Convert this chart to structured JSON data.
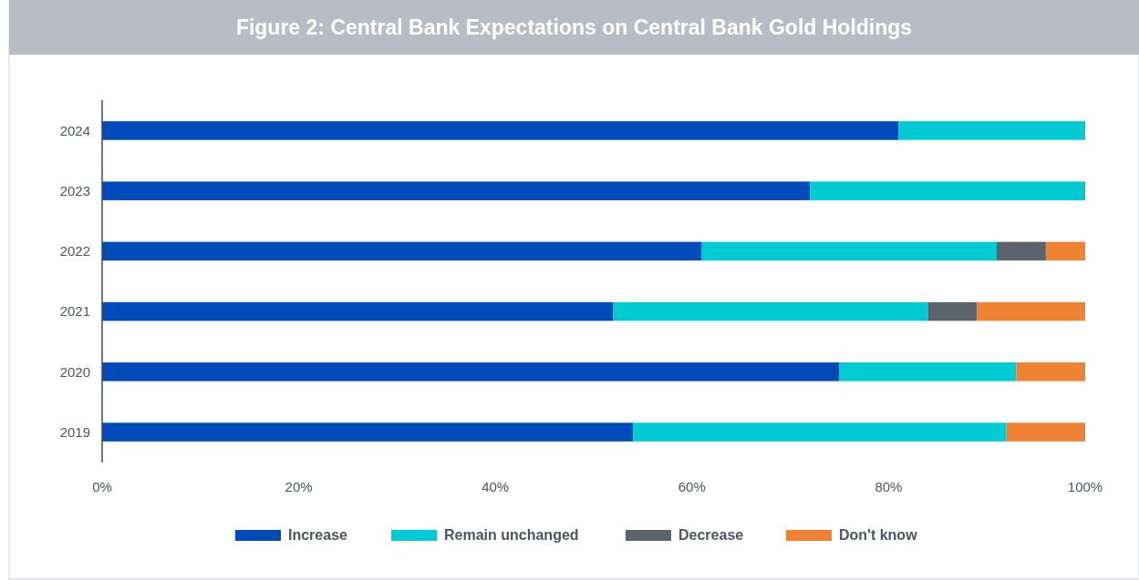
{
  "chart_data": {
    "type": "bar",
    "orientation": "horizontal",
    "stacked": true,
    "title": "Figure 2: Central Bank Expectations on Central Bank Gold Holdings",
    "categories": [
      "2024",
      "2023",
      "2022",
      "2021",
      "2020",
      "2019"
    ],
    "series": [
      {
        "name": "Increase",
        "color": "#004bb9",
        "values": [
          81,
          72,
          61,
          52,
          75,
          54
        ]
      },
      {
        "name": "Remain unchanged",
        "color": "#00cbd3",
        "values": [
          19,
          28,
          30,
          32,
          18,
          38
        ]
      },
      {
        "name": "Decrease",
        "color": "#5b646d",
        "values": [
          0,
          0,
          5,
          5,
          0,
          0
        ]
      },
      {
        "name": "Don't know",
        "color": "#f08233",
        "values": [
          0,
          0,
          4,
          11,
          7,
          8
        ]
      }
    ],
    "xlim": [
      0,
      100
    ],
    "xticks": [
      {
        "value": 0,
        "label": "0%"
      },
      {
        "value": 20,
        "label": "20%"
      },
      {
        "value": 40,
        "label": "40%"
      },
      {
        "value": 60,
        "label": "60%"
      },
      {
        "value": 80,
        "label": "80%"
      },
      {
        "value": 100,
        "label": "100%"
      }
    ],
    "grid": false,
    "legend": "bottom"
  }
}
